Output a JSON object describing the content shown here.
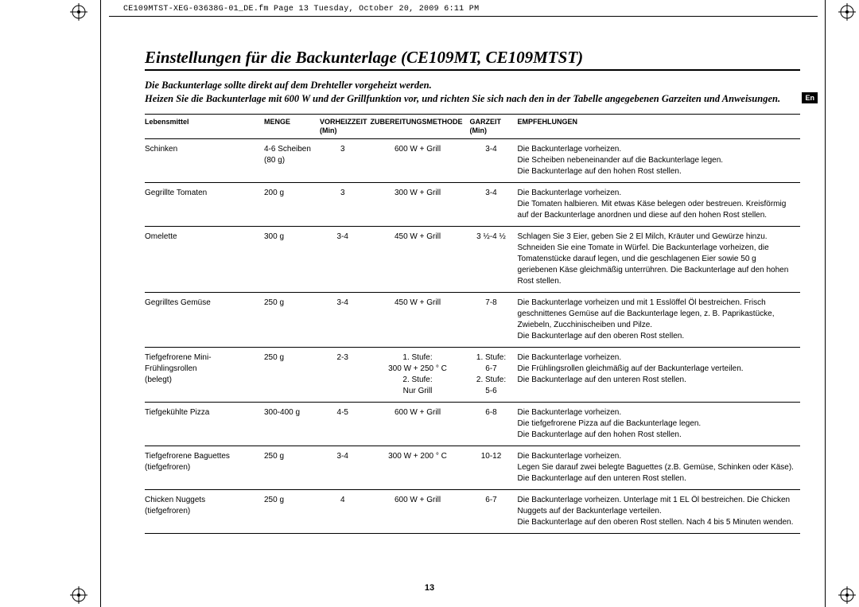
{
  "header_line": "CE109MTST-XEG-03638G-01_DE.fm  Page 13  Tuesday, October 20, 2009  6:11 PM",
  "section_title": "Einstellungen für die Backunterlage (CE109MT, CE109MTST)",
  "intro_html": "Die Backunterlage sollte direkt auf dem Drehteller vorgeheizt werden.<br>Heizen Sie die Backunterlage mit 600 W und der Grillfunktion vor, und richten Sie sich nach den in der Tabelle angegebenen Garzeiten und Anweisungen.",
  "lang_badge": "En",
  "page_number": "13",
  "columns": {
    "food": "Lebensmittel",
    "qty": "MENGE",
    "preheat": "VORHEIZZEIT<br>(Min)",
    "method": "ZUBEREITUNGSMETHODE",
    "cook": "GARZEIT<br>(Min)",
    "rec": "EMPFEHLUNGEN"
  },
  "rows": [
    {
      "food": "Schinken",
      "qty": "4-6 Scheiben<br>(80 g)",
      "preheat": "3",
      "method": "600 W + Grill",
      "cook": "3-4",
      "rec": "Die Backunterlage vorheizen.<br>Die Scheiben nebeneinander auf die Backunterlage legen.<br>Die Backunterlage auf den hohen Rost stellen."
    },
    {
      "food": "Gegrillte Tomaten",
      "qty": "200 g",
      "preheat": "3",
      "method": "300 W + Grill",
      "cook": "3-4",
      "rec": "Die Backunterlage vorheizen.<br>Die Tomaten halbieren. Mit etwas Käse belegen oder bestreuen. Kreisförmig auf der Backunterlage anordnen und diese auf den hohen Rost stellen."
    },
    {
      "food": "Omelette",
      "qty": "300 g",
      "preheat": "3-4",
      "method": "450 W + Grill",
      "cook": "3 ½-4 ½",
      "rec": "Schlagen Sie 3 Eier, geben Sie 2 El Milch, Kräuter und Gewürze hinzu. Schneiden Sie eine Tomate in Würfel. Die Backunterlage vorheizen, die Tomatenstücke darauf legen, und die geschlagenen Eier sowie 50 g geriebenen Käse gleichmäßig unterrühren. Die Backunterlage auf den hohen Rost stellen."
    },
    {
      "food": "Gegrilltes Gemüse",
      "qty": "250 g",
      "preheat": "3-4",
      "method": "450 W + Grill",
      "cook": "7-8",
      "rec": "Die Backunterlage vorheizen und mit 1 Esslöffel Öl bestreichen. Frisch geschnittenes Gemüse auf die Backunterlage legen, z. B. Paprikastücke, Zwiebeln, Zucchinischeiben und Pilze.<br>Die Backunterlage auf den oberen Rost stellen."
    },
    {
      "food": "Tiefgefrorene Mini-Frühlingsrollen<br>(belegt)",
      "qty": "250 g",
      "preheat": "2-3",
      "method": "1. Stufe:<br>300 W + 250 ° C<br>2. Stufe:<br>Nur Grill",
      "cook": "1. Stufe:<br>6-7<br>2. Stufe:<br>5-6",
      "rec": "Die Backunterlage vorheizen.<br>Die Frühlingsrollen gleichmäßig auf der Backunterlage verteilen.<br>Die Backunterlage auf den unteren Rost stellen."
    },
    {
      "food": "Tiefgekühlte Pizza",
      "qty": "300-400 g",
      "preheat": "4-5",
      "method": "600 W + Grill",
      "cook": "6-8",
      "rec": "Die Backunterlage vorheizen.<br>Die tiefgefrorene Pizza auf die Backunterlage legen.<br>Die Backunterlage auf den hohen Rost stellen."
    },
    {
      "food": "Tiefgefrorene Baguettes<br>(tiefgefroren)",
      "qty": "250 g",
      "preheat": "3-4",
      "method": "300 W + 200 ° C",
      "cook": "10-12",
      "rec": "Die Backunterlage vorheizen.<br>Legen Sie darauf zwei belegte Baguettes (z.B. Gemüse, Schinken oder Käse). Die Backunterlage auf den unteren Rost stellen."
    },
    {
      "food": "Chicken Nuggets<br>(tiefgefroren)",
      "qty": "250 g",
      "preheat": "4",
      "method": "600 W + Grill",
      "cook": "6-7",
      "rec": "Die Backunterlage vorheizen. Unterlage mit 1 EL Öl bestreichen. Die Chicken Nuggets auf der Backunterlage verteilen.<br>Die Backunterlage auf den oberen Rost stellen. Nach 4 bis 5 Minuten wenden."
    }
  ]
}
